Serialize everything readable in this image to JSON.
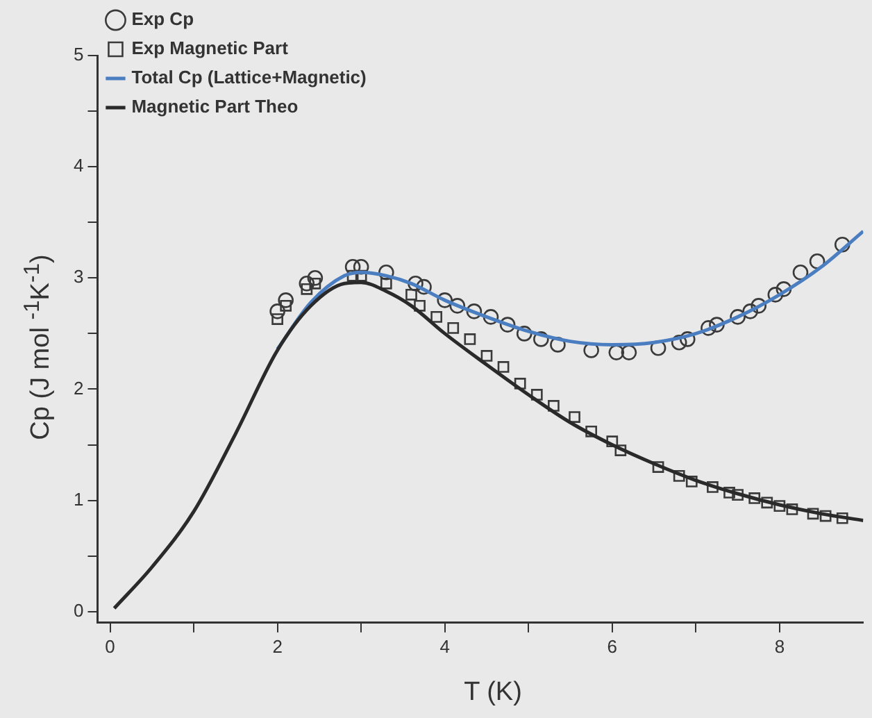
{
  "chart_data": {
    "type": "scatter",
    "xlabel": "T (K)",
    "ylabel": "Cp (J mol $^{-1}$K$^{-1}$)",
    "xlim": [
      -0.15,
      9
    ],
    "ylim": [
      -0.1,
      5
    ],
    "xticks": [
      0,
      {
        "value": 1,
        "label": null
      },
      2,
      {
        "value": 3,
        "label": null
      },
      4,
      {
        "value": 5,
        "label": null
      },
      6,
      {
        "value": 7,
        "label": null
      },
      8
    ],
    "yticks": [
      0,
      {
        "value": 0.5,
        "label": null
      },
      1,
      {
        "value": 1.5,
        "label": null
      },
      2,
      {
        "value": 2.5,
        "label": null
      },
      3,
      {
        "value": 3.5,
        "label": null
      },
      4,
      {
        "value": 4.5,
        "label": null
      },
      5
    ],
    "grid": false,
    "legend": "top left",
    "series": [
      {
        "name": "Exp Cp",
        "type": "scatter",
        "marker": "circle",
        "color": "#3a3a3a",
        "x": [
          2.0,
          2.1,
          2.35,
          2.45,
          2.9,
          3.0,
          3.3,
          3.65,
          3.75,
          4.0,
          4.15,
          4.35,
          4.55,
          4.75,
          4.95,
          5.15,
          5.35,
          5.75,
          6.05,
          6.2,
          6.55,
          6.8,
          6.9,
          7.15,
          7.25,
          7.5,
          7.65,
          7.75,
          7.95,
          8.05,
          8.25,
          8.45,
          8.75
        ],
        "values": [
          2.7,
          2.8,
          2.95,
          3.0,
          3.1,
          3.1,
          3.05,
          2.95,
          2.92,
          2.8,
          2.75,
          2.7,
          2.65,
          2.58,
          2.5,
          2.45,
          2.4,
          2.35,
          2.33,
          2.33,
          2.37,
          2.42,
          2.45,
          2.55,
          2.58,
          2.65,
          2.7,
          2.75,
          2.85,
          2.9,
          3.05,
          3.15,
          3.3
        ]
      },
      {
        "name": "Exp Magnetic Part",
        "type": "scatter",
        "marker": "square",
        "color": "#3a3a3a",
        "x": [
          2.0,
          2.1,
          2.35,
          2.45,
          2.9,
          3.0,
          3.3,
          3.6,
          3.7,
          3.9,
          4.1,
          4.3,
          4.5,
          4.7,
          4.9,
          5.1,
          5.3,
          5.55,
          5.75,
          6.0,
          6.1,
          6.55,
          6.8,
          6.95,
          7.2,
          7.4,
          7.5,
          7.7,
          7.85,
          8.0,
          8.15,
          8.4,
          8.55,
          8.75
        ],
        "values": [
          2.63,
          2.75,
          2.9,
          2.95,
          3.02,
          3.02,
          2.95,
          2.85,
          2.75,
          2.65,
          2.55,
          2.45,
          2.3,
          2.2,
          2.05,
          1.95,
          1.85,
          1.75,
          1.62,
          1.53,
          1.45,
          1.3,
          1.22,
          1.17,
          1.12,
          1.07,
          1.05,
          1.02,
          0.98,
          0.95,
          0.92,
          0.88,
          0.86,
          0.84
        ]
      },
      {
        "name": "Total Cp (Lattice+Magnetic)",
        "type": "line",
        "marker": "none",
        "line_style": "solid",
        "color": "#4a7ec0",
        "x": [
          2,
          2.4,
          2.8,
          3.0,
          3.3,
          3.6,
          4,
          4.5,
          5,
          5.5,
          6,
          6.5,
          7,
          7.5,
          8,
          8.5,
          9
        ],
        "values": [
          2.36,
          2.78,
          3.02,
          3.05,
          3.02,
          2.95,
          2.8,
          2.65,
          2.52,
          2.43,
          2.4,
          2.42,
          2.5,
          2.65,
          2.85,
          3.1,
          3.42
        ]
      },
      {
        "name": "Magnetic Part Theo",
        "type": "line",
        "marker": "none",
        "line_style": "solid",
        "color": "#2a2a2a",
        "x": [
          0.05,
          0.5,
          1,
          1.5,
          2,
          2.4,
          2.8,
          3.0,
          3.3,
          3.6,
          4,
          4.5,
          5,
          5.5,
          6,
          6.5,
          7,
          7.5,
          8,
          8.5,
          9
        ],
        "values": [
          0.03,
          0.4,
          0.9,
          1.6,
          2.35,
          2.75,
          2.95,
          2.96,
          2.88,
          2.75,
          2.5,
          2.22,
          1.95,
          1.7,
          1.5,
          1.33,
          1.18,
          1.06,
          0.96,
          0.88,
          0.82
        ]
      }
    ]
  }
}
